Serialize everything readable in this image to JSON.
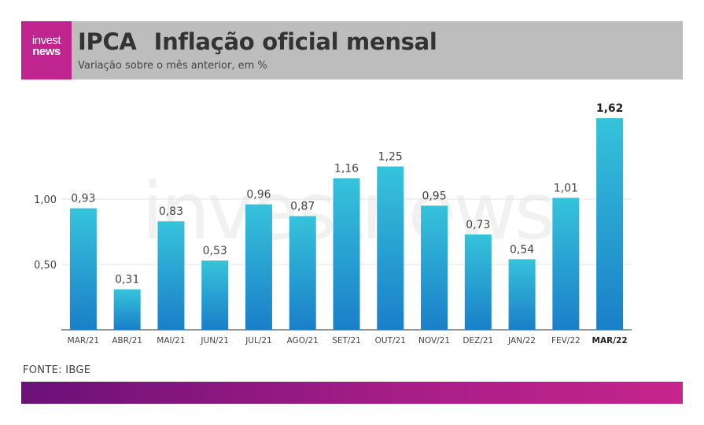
{
  "header": {
    "logo_line1": "invest",
    "logo_line2": "news",
    "title_prefix": "IPCA",
    "title_main": "Inflação oficial mensal",
    "subtitle": "Variação sobre o mês anterior, em %"
  },
  "watermark": "investnews",
  "source": "FONTE: IBGE",
  "colors": {
    "bar_top": "#36c3db",
    "bar_bottom": "#1a7fc8",
    "header_bg": "#bdbdbd",
    "logo_bg": "#c0258f",
    "footer_start": "#6a1178",
    "footer_end": "#c6258d"
  },
  "chart_data": {
    "type": "bar",
    "title": "Inflação oficial mensal",
    "xlabel": "",
    "ylabel": "",
    "ylim": [
      0,
      1.62
    ],
    "ytick_values": [
      0.5,
      1.0
    ],
    "ytick_labels": [
      "0,50",
      "1,00"
    ],
    "grid": true,
    "categories": [
      "MAR/21",
      "ABR/21",
      "MAI/21",
      "JUN/21",
      "JUL/21",
      "AGO/21",
      "SET/21",
      "OUT/21",
      "NOV/21",
      "DEZ/21",
      "JAN/22",
      "FEV/22",
      "MAR/22"
    ],
    "values": [
      0.93,
      0.31,
      0.83,
      0.53,
      0.96,
      0.87,
      1.16,
      1.25,
      0.95,
      0.73,
      0.54,
      1.01,
      1.62
    ],
    "value_labels": [
      "0,93",
      "0,31",
      "0,83",
      "0,53",
      "0,96",
      "0,87",
      "1,16",
      "1,25",
      "0,95",
      "0,73",
      "0,54",
      "1,01",
      "1,62"
    ],
    "highlight_index": 12
  }
}
